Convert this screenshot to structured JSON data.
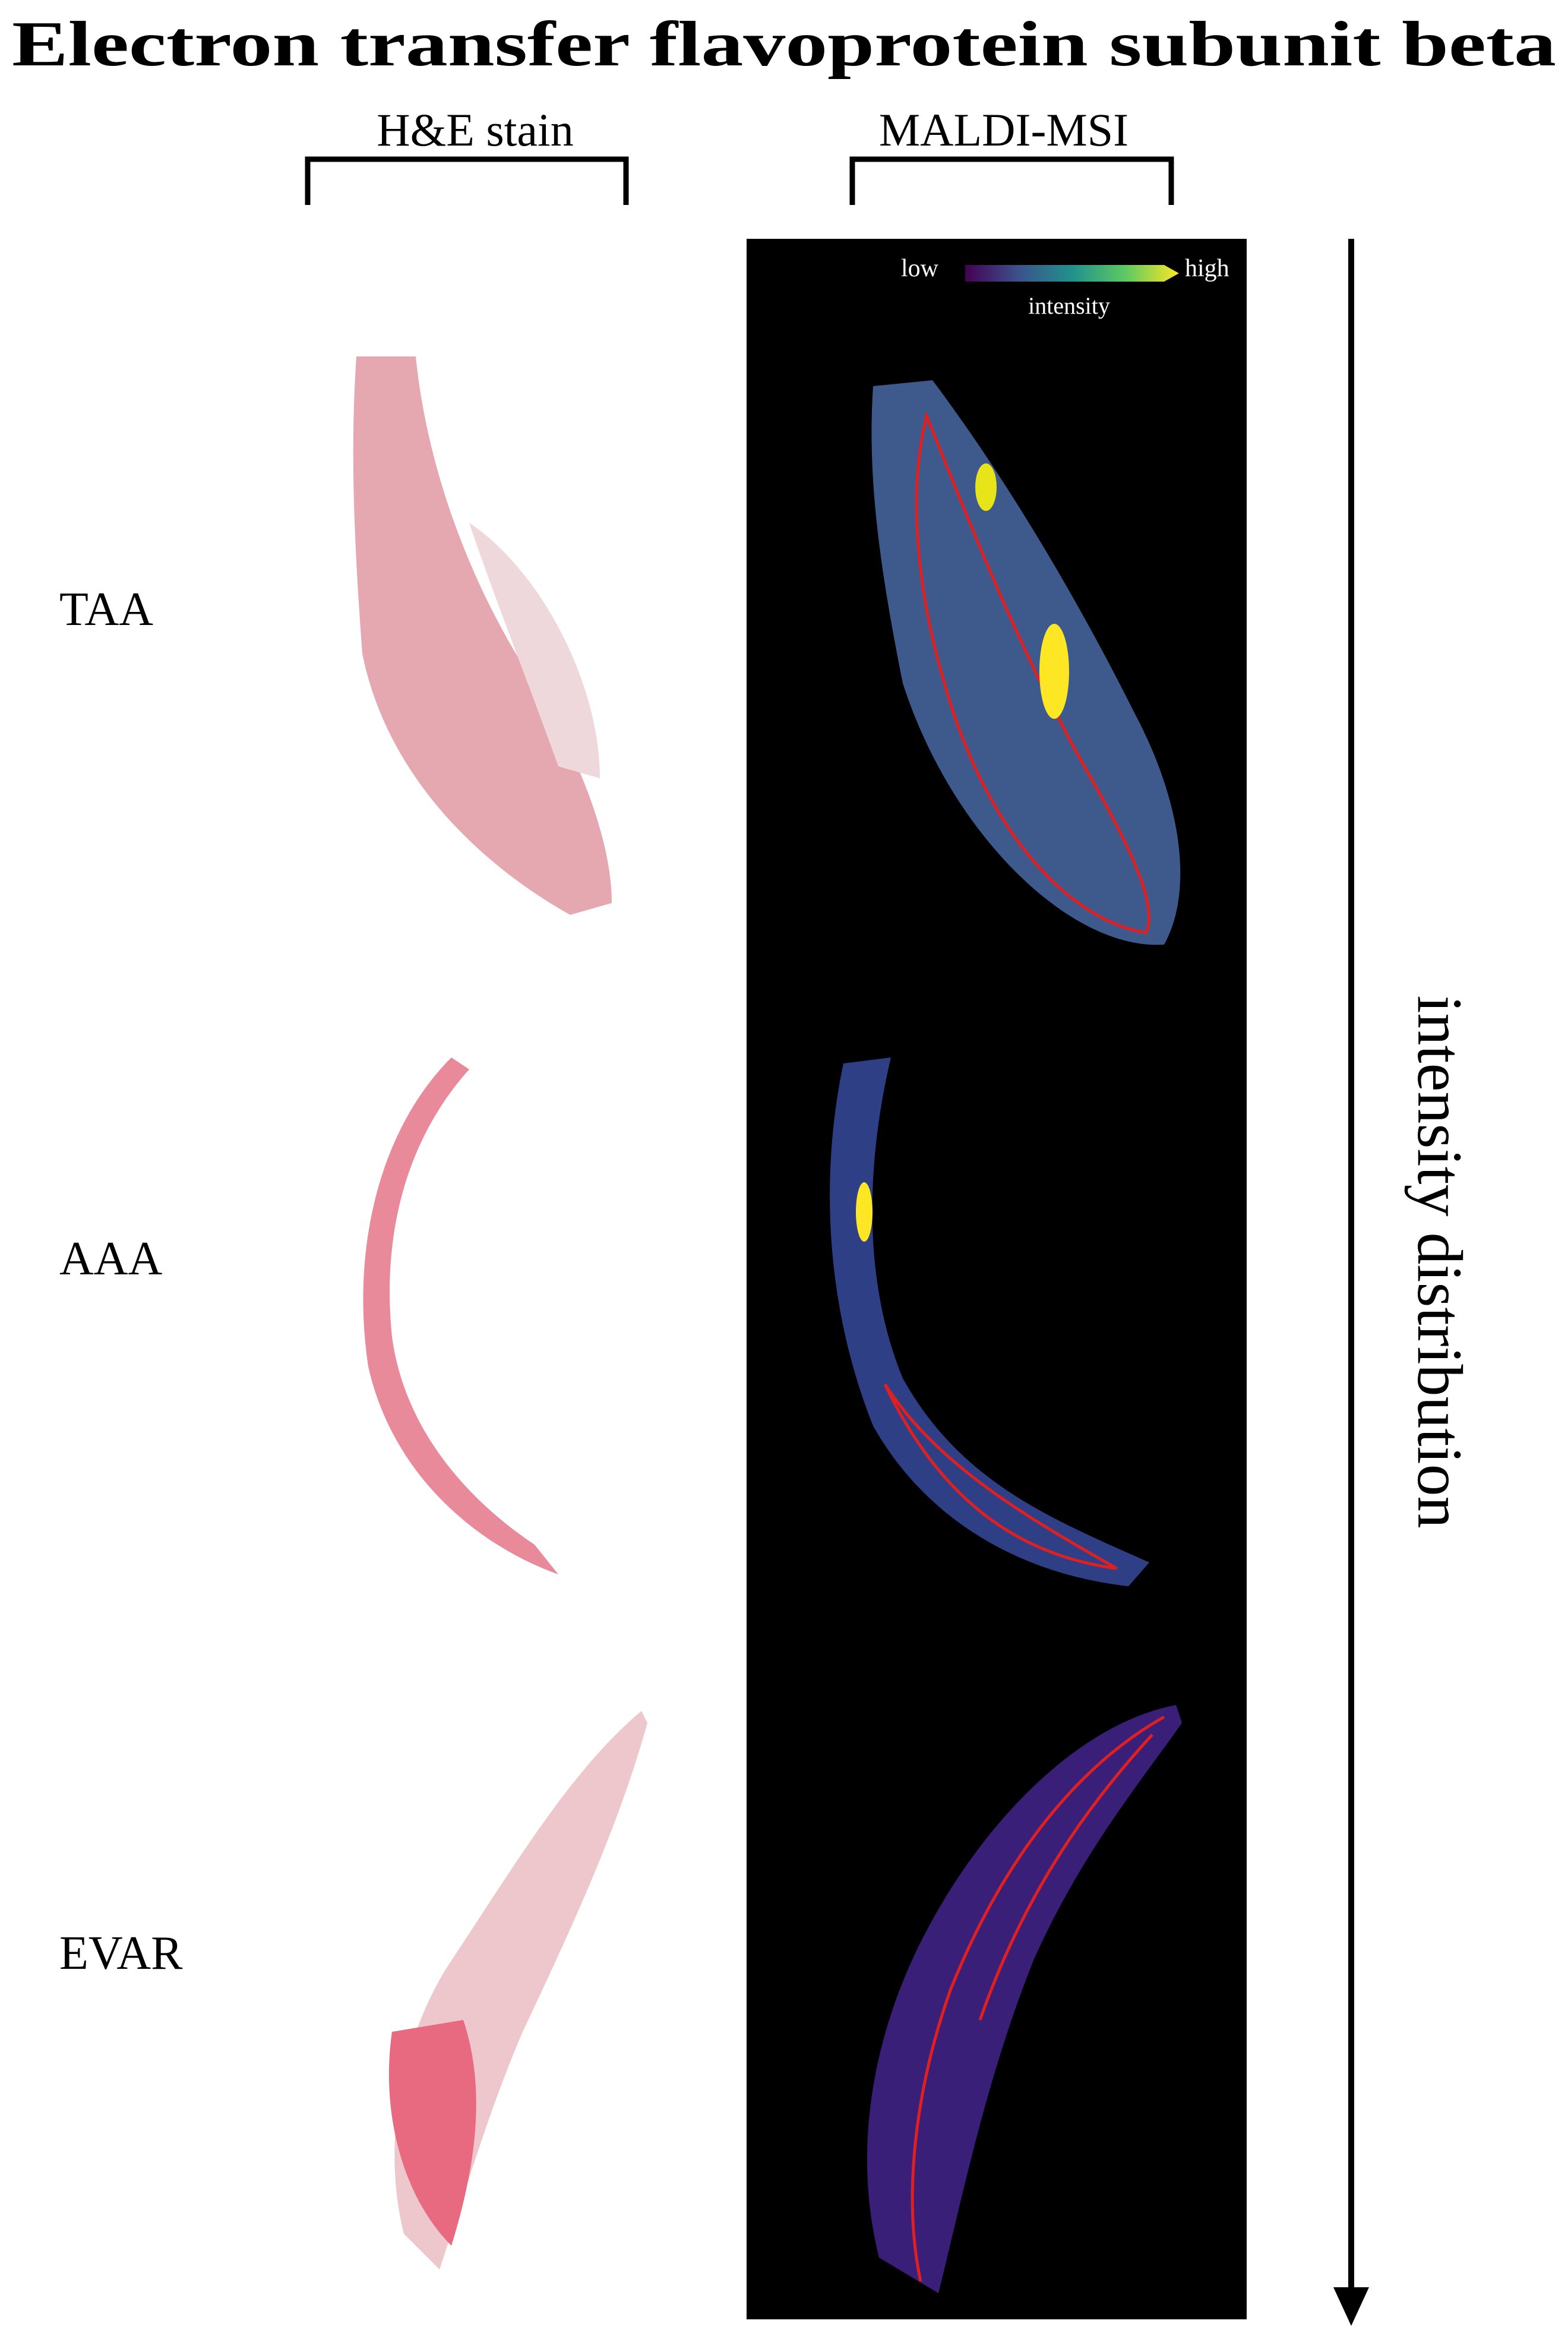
{
  "title": "Electron transfer flavoprotein subunit beta",
  "columns": [
    "H&E stain",
    "MALDI-MSI"
  ],
  "colorbar": {
    "low": "low",
    "high": "high",
    "label": "intensity"
  },
  "rows": [
    "TAA",
    "AAA",
    "EVAR"
  ],
  "arrow_label": "intensity distribution"
}
